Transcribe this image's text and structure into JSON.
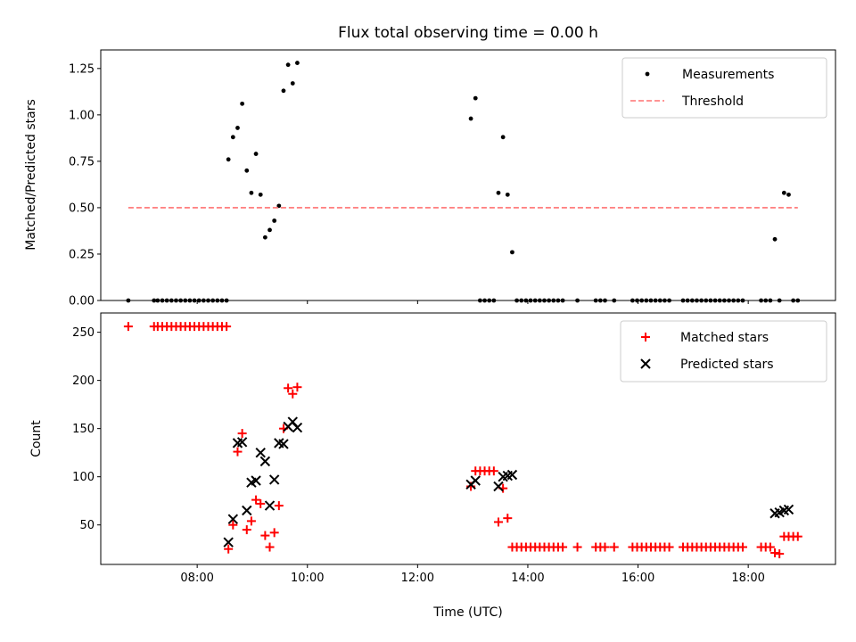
{
  "chart_data": [
    {
      "type": "scatter",
      "title": "Flux total observing time = 0.00 h",
      "xlabel": "",
      "ylabel": "Matched/Predicted stars",
      "xlim": [
        "06:15",
        "19:35"
      ],
      "ylim": [
        0,
        1.35
      ],
      "yticks": [
        0.0,
        0.25,
        0.5,
        0.75,
        1.0,
        1.25
      ],
      "ytick_labels": [
        "0.00",
        "0.25",
        "0.50",
        "0.75",
        "1.00",
        "1.25"
      ],
      "xticks": [
        "08:00",
        "10:00",
        "12:00",
        "14:00",
        "16:00",
        "18:00"
      ],
      "show_xtick_labels": false,
      "grid": false,
      "legend": "top-right",
      "series": [
        {
          "name": "Measurements",
          "kind": "dot",
          "color": "#000000",
          "points": [
            [
              "06:45",
              0.0
            ],
            [
              "07:13",
              0.0
            ],
            [
              "07:17",
              0.0
            ],
            [
              "07:22",
              0.0
            ],
            [
              "07:27",
              0.0
            ],
            [
              "07:32",
              0.0
            ],
            [
              "07:37",
              0.0
            ],
            [
              "07:42",
              0.0
            ],
            [
              "07:47",
              0.0
            ],
            [
              "07:52",
              0.0
            ],
            [
              "07:57",
              0.0
            ],
            [
              "08:02",
              0.0
            ],
            [
              "08:07",
              0.0
            ],
            [
              "08:12",
              0.0
            ],
            [
              "08:17",
              0.0
            ],
            [
              "08:22",
              0.0
            ],
            [
              "08:27",
              0.0
            ],
            [
              "08:32",
              0.0
            ],
            [
              "08:34",
              0.76
            ],
            [
              "08:39",
              0.88
            ],
            [
              "08:44",
              0.93
            ],
            [
              "08:49",
              1.06
            ],
            [
              "08:54",
              0.7
            ],
            [
              "08:59",
              0.58
            ],
            [
              "09:04",
              0.79
            ],
            [
              "09:09",
              0.57
            ],
            [
              "09:14",
              0.34
            ],
            [
              "09:19",
              0.38
            ],
            [
              "09:24",
              0.43
            ],
            [
              "09:29",
              0.51
            ],
            [
              "09:34",
              1.13
            ],
            [
              "09:39",
              1.27
            ],
            [
              "09:44",
              1.17
            ],
            [
              "09:49",
              1.28
            ],
            [
              "12:58",
              0.98
            ],
            [
              "13:03",
              1.09
            ],
            [
              "13:08",
              0.0
            ],
            [
              "13:13",
              0.0
            ],
            [
              "13:18",
              0.0
            ],
            [
              "13:23",
              0.0
            ],
            [
              "13:28",
              0.58
            ],
            [
              "13:33",
              0.88
            ],
            [
              "13:38",
              0.57
            ],
            [
              "13:43",
              0.26
            ],
            [
              "13:48",
              0.0
            ],
            [
              "13:53",
              0.0
            ],
            [
              "13:58",
              0.0
            ],
            [
              "14:03",
              0.0
            ],
            [
              "14:08",
              0.0
            ],
            [
              "14:13",
              0.0
            ],
            [
              "14:18",
              0.0
            ],
            [
              "14:23",
              0.0
            ],
            [
              "14:28",
              0.0
            ],
            [
              "14:33",
              0.0
            ],
            [
              "14:38",
              0.0
            ],
            [
              "14:54",
              0.0
            ],
            [
              "15:14",
              0.0
            ],
            [
              "15:19",
              0.0
            ],
            [
              "15:24",
              0.0
            ],
            [
              "15:34",
              0.0
            ],
            [
              "15:54",
              0.0
            ],
            [
              "15:59",
              0.0
            ],
            [
              "16:04",
              0.0
            ],
            [
              "16:09",
              0.0
            ],
            [
              "16:14",
              0.0
            ],
            [
              "16:19",
              0.0
            ],
            [
              "16:24",
              0.0
            ],
            [
              "16:29",
              0.0
            ],
            [
              "16:34",
              0.0
            ],
            [
              "16:49",
              0.0
            ],
            [
              "16:54",
              0.0
            ],
            [
              "16:59",
              0.0
            ],
            [
              "17:04",
              0.0
            ],
            [
              "17:09",
              0.0
            ],
            [
              "17:14",
              0.0
            ],
            [
              "17:19",
              0.0
            ],
            [
              "17:24",
              0.0
            ],
            [
              "17:29",
              0.0
            ],
            [
              "17:34",
              0.0
            ],
            [
              "17:39",
              0.0
            ],
            [
              "17:44",
              0.0
            ],
            [
              "17:49",
              0.0
            ],
            [
              "17:54",
              0.0
            ],
            [
              "18:14",
              0.0
            ],
            [
              "18:19",
              0.0
            ],
            [
              "18:24",
              0.0
            ],
            [
              "18:29",
              0.33
            ],
            [
              "18:34",
              0.0
            ],
            [
              "18:39",
              0.58
            ],
            [
              "18:44",
              0.57
            ],
            [
              "18:49",
              0.0
            ],
            [
              "18:54",
              0.0
            ]
          ]
        },
        {
          "name": "Threshold",
          "kind": "dashed-line",
          "color": "#ff7070",
          "points": [
            [
              "06:45",
              0.5
            ],
            [
              "18:54",
              0.5
            ]
          ]
        }
      ]
    },
    {
      "type": "scatter",
      "title": "",
      "xlabel": "Time (UTC)",
      "ylabel": "Count",
      "xlim": [
        "06:15",
        "19:35"
      ],
      "ylim": [
        9,
        270
      ],
      "yticks": [
        50,
        100,
        150,
        200,
        250
      ],
      "ytick_labels": [
        "50",
        "100",
        "150",
        "200",
        "250"
      ],
      "xticks": [
        "08:00",
        "10:00",
        "12:00",
        "14:00",
        "16:00",
        "18:00"
      ],
      "xtick_labels": [
        "08:00",
        "10:00",
        "12:00",
        "14:00",
        "16:00",
        "18:00"
      ],
      "grid": false,
      "legend": "top-right",
      "series": [
        {
          "name": "Matched stars",
          "kind": "plus",
          "color": "#ff0000",
          "points": [
            [
              "06:45",
              256
            ],
            [
              "07:13",
              256
            ],
            [
              "07:17",
              256
            ],
            [
              "07:22",
              256
            ],
            [
              "07:27",
              256
            ],
            [
              "07:32",
              256
            ],
            [
              "07:37",
              256
            ],
            [
              "07:42",
              256
            ],
            [
              "07:47",
              256
            ],
            [
              "07:52",
              256
            ],
            [
              "07:57",
              256
            ],
            [
              "08:02",
              256
            ],
            [
              "08:07",
              256
            ],
            [
              "08:12",
              256
            ],
            [
              "08:17",
              256
            ],
            [
              "08:22",
              256
            ],
            [
              "08:27",
              256
            ],
            [
              "08:32",
              256
            ],
            [
              "08:34",
              25
            ],
            [
              "08:39",
              50
            ],
            [
              "08:44",
              126
            ],
            [
              "08:49",
              145
            ],
            [
              "08:54",
              45
            ],
            [
              "08:59",
              54
            ],
            [
              "09:04",
              76
            ],
            [
              "09:09",
              72
            ],
            [
              "09:14",
              39
            ],
            [
              "09:19",
              27
            ],
            [
              "09:24",
              42
            ],
            [
              "09:29",
              70
            ],
            [
              "09:34",
              150
            ],
            [
              "09:39",
              192
            ],
            [
              "09:44",
              186
            ],
            [
              "09:49",
              193
            ],
            [
              "12:58",
              90
            ],
            [
              "13:03",
              106
            ],
            [
              "13:08",
              106
            ],
            [
              "13:13",
              106
            ],
            [
              "13:18",
              106
            ],
            [
              "13:23",
              106
            ],
            [
              "13:28",
              53
            ],
            [
              "13:33",
              88
            ],
            [
              "13:38",
              57
            ],
            [
              "13:43",
              27
            ],
            [
              "13:48",
              27
            ],
            [
              "13:53",
              27
            ],
            [
              "13:58",
              27
            ],
            [
              "14:03",
              27
            ],
            [
              "14:08",
              27
            ],
            [
              "14:13",
              27
            ],
            [
              "14:18",
              27
            ],
            [
              "14:23",
              27
            ],
            [
              "14:28",
              27
            ],
            [
              "14:33",
              27
            ],
            [
              "14:38",
              27
            ],
            [
              "14:54",
              27
            ],
            [
              "15:14",
              27
            ],
            [
              "15:19",
              27
            ],
            [
              "15:24",
              27
            ],
            [
              "15:34",
              27
            ],
            [
              "15:54",
              27
            ],
            [
              "15:59",
              27
            ],
            [
              "16:04",
              27
            ],
            [
              "16:09",
              27
            ],
            [
              "16:14",
              27
            ],
            [
              "16:19",
              27
            ],
            [
              "16:24",
              27
            ],
            [
              "16:29",
              27
            ],
            [
              "16:34",
              27
            ],
            [
              "16:49",
              27
            ],
            [
              "16:54",
              27
            ],
            [
              "16:59",
              27
            ],
            [
              "17:04",
              27
            ],
            [
              "17:09",
              27
            ],
            [
              "17:14",
              27
            ],
            [
              "17:19",
              27
            ],
            [
              "17:24",
              27
            ],
            [
              "17:29",
              27
            ],
            [
              "17:34",
              27
            ],
            [
              "17:39",
              27
            ],
            [
              "17:44",
              27
            ],
            [
              "17:49",
              27
            ],
            [
              "17:54",
              27
            ],
            [
              "18:14",
              27
            ],
            [
              "18:19",
              27
            ],
            [
              "18:24",
              27
            ],
            [
              "18:29",
              21
            ],
            [
              "18:34",
              20
            ],
            [
              "18:39",
              38
            ],
            [
              "18:44",
              38
            ],
            [
              "18:49",
              38
            ],
            [
              "18:54",
              38
            ]
          ]
        },
        {
          "name": "Predicted stars",
          "kind": "x",
          "color": "#000000",
          "points": [
            [
              "08:34",
              32
            ],
            [
              "08:39",
              56
            ],
            [
              "08:44",
              135
            ],
            [
              "08:49",
              136
            ],
            [
              "08:54",
              65
            ],
            [
              "08:59",
              94
            ],
            [
              "09:04",
              96
            ],
            [
              "09:09",
              125
            ],
            [
              "09:14",
              116
            ],
            [
              "09:19",
              70
            ],
            [
              "09:24",
              97
            ],
            [
              "09:29",
              135
            ],
            [
              "09:34",
              134
            ],
            [
              "09:39",
              152
            ],
            [
              "09:44",
              157
            ],
            [
              "09:49",
              151
            ],
            [
              "12:58",
              92
            ],
            [
              "13:03",
              96
            ],
            [
              "13:28",
              90
            ],
            [
              "13:33",
              100
            ],
            [
              "13:38",
              101
            ],
            [
              "13:43",
              102
            ],
            [
              "18:29",
              62
            ],
            [
              "18:34",
              63
            ],
            [
              "18:39",
              65
            ],
            [
              "18:44",
              66
            ]
          ]
        }
      ]
    }
  ]
}
